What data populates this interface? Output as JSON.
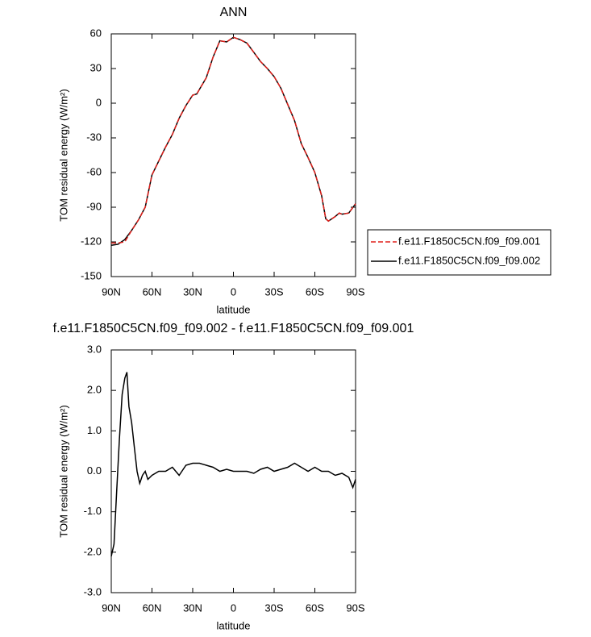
{
  "chart_data": [
    {
      "type": "line",
      "title": "ANN",
      "xlabel": "latitude",
      "ylabel": "TOM residual energy (W/m²)",
      "x": [
        90,
        85,
        80,
        75,
        70,
        65,
        60,
        55,
        50,
        45,
        40,
        35,
        30,
        27,
        25,
        20,
        15,
        10,
        5,
        0,
        -5,
        -10,
        -15,
        -20,
        -25,
        -30,
        -35,
        -40,
        -45,
        -50,
        -55,
        -60,
        -65,
        -68,
        -70,
        -75,
        -78,
        -80,
        -85,
        -90
      ],
      "series": [
        {
          "name": "f.e11.F1850C5CN.f09_f09.001",
          "color": "#e0201b",
          "dash": true,
          "values": [
            -121,
            -121,
            -120,
            -110,
            -101,
            -90,
            -62,
            -50,
            -38,
            -27,
            -13,
            -2,
            7,
            8,
            12,
            22,
            40,
            54,
            53,
            57,
            55,
            52,
            44,
            36,
            30,
            23,
            13,
            -1,
            -15,
            -35,
            -47,
            -60,
            -80,
            -100,
            -102,
            -98,
            -95,
            -96,
            -95,
            -87
          ]
        },
        {
          "name": "f.e11.F1850C5CN.f09_f09.002",
          "color": "#000000",
          "dash": false,
          "values": [
            -123,
            -122,
            -118,
            -110,
            -101,
            -90,
            -62,
            -50,
            -38,
            -27,
            -13,
            -2,
            7,
            8,
            12,
            22,
            40,
            54,
            53,
            57,
            55,
            52,
            44,
            36,
            30,
            23,
            13,
            -1,
            -15,
            -35,
            -47,
            -60,
            -80,
            -100,
            -102,
            -98,
            -95,
            -96,
            -95,
            -87
          ]
        }
      ],
      "xlim": [
        90,
        -90
      ],
      "xticks": [
        {
          "value": 90,
          "label": "90N"
        },
        {
          "value": 60,
          "label": "60N"
        },
        {
          "value": 30,
          "label": "30N"
        },
        0,
        {
          "value": -30,
          "label": "30S"
        },
        {
          "value": -60,
          "label": "60S"
        },
        {
          "value": -90,
          "label": "90S"
        }
      ],
      "ylim": [
        -150,
        60
      ],
      "yticks": [
        -150,
        -120,
        -90,
        -60,
        -30,
        0,
        30,
        60
      ],
      "legend": "right"
    },
    {
      "type": "line",
      "title": "f.e11.F1850C5CN.f09_f09.002 - f.e11.F1850C5CN.f09_f09.001",
      "xlabel": "latitude",
      "ylabel": "TOM residual energy (W/m²)",
      "x": [
        90,
        88,
        86,
        84,
        82,
        80,
        78.5,
        77,
        75,
        73,
        71,
        69,
        67,
        65,
        63,
        60,
        55,
        50,
        45,
        40,
        35,
        30,
        25,
        20,
        15,
        10,
        5,
        0,
        -5,
        -10,
        -15,
        -20,
        -25,
        -30,
        -35,
        -40,
        -45,
        -50,
        -55,
        -60,
        -65,
        -70,
        -75,
        -80,
        -85,
        -88,
        -90
      ],
      "values": [
        -2.1,
        -1.8,
        -0.5,
        0.8,
        1.9,
        2.3,
        2.45,
        1.6,
        1.2,
        0.6,
        0.0,
        -0.3,
        -0.1,
        0.0,
        -0.2,
        -0.1,
        0.0,
        0.0,
        0.1,
        -0.1,
        0.15,
        0.2,
        0.2,
        0.15,
        0.1,
        0.0,
        0.05,
        0.0,
        0.0,
        0.0,
        -0.05,
        0.05,
        0.1,
        0.0,
        0.05,
        0.1,
        0.2,
        0.1,
        0.0,
        0.1,
        0.0,
        0.0,
        -0.1,
        -0.05,
        -0.15,
        -0.4,
        -0.2
      ],
      "color": "#000000",
      "xlim": [
        90,
        -90
      ],
      "xticks": [
        {
          "value": 90,
          "label": "90N"
        },
        {
          "value": 60,
          "label": "60N"
        },
        {
          "value": 30,
          "label": "30N"
        },
        0,
        {
          "value": -30,
          "label": "30S"
        },
        {
          "value": -60,
          "label": "60S"
        },
        {
          "value": -90,
          "label": "90S"
        }
      ],
      "ylim": [
        -3,
        3
      ],
      "yticks": [
        {
          "value": -3,
          "label": "-3.0"
        },
        {
          "value": -2,
          "label": "-2.0"
        },
        {
          "value": -1,
          "label": "-1.0"
        },
        {
          "value": 0,
          "label": "0.0"
        },
        {
          "value": 1,
          "label": "1.0"
        },
        {
          "value": 2,
          "label": "2.0"
        },
        {
          "value": 3,
          "label": "3.0"
        }
      ]
    }
  ]
}
